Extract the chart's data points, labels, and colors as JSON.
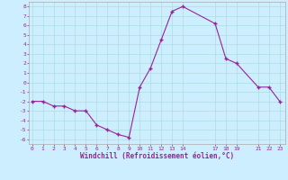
{
  "x": [
    0,
    1,
    2,
    3,
    4,
    5,
    6,
    7,
    8,
    9,
    10,
    11,
    12,
    13,
    14,
    17,
    18,
    19,
    21,
    22,
    23
  ],
  "y": [
    -2,
    -2,
    -2.5,
    -2.5,
    -3,
    -3,
    -4.5,
    -5,
    -5.5,
    -5.8,
    -0.5,
    1.5,
    4.5,
    7.5,
    8,
    6.2,
    2.5,
    2,
    -0.5,
    -0.5,
    -2
  ],
  "line_color": "#992299",
  "marker": "+",
  "bg_color": "#cceeff",
  "grid_color": "#aadddd",
  "xlabel": "Windchill (Refroidissement éolien,°C)",
  "xlabel_color": "#992299",
  "tick_color": "#992299",
  "spine_color": "#aaaaaa",
  "yticks": [
    -6,
    -5,
    -4,
    -3,
    -2,
    -1,
    0,
    1,
    2,
    3,
    4,
    5,
    6,
    7,
    8
  ],
  "xticks": [
    0,
    1,
    2,
    3,
    4,
    5,
    6,
    7,
    8,
    9,
    10,
    11,
    12,
    13,
    14,
    17,
    18,
    19,
    21,
    22,
    23
  ],
  "xlim": [
    -0.3,
    23.5
  ],
  "ylim": [
    -6.5,
    8.5
  ],
  "figsize": [
    3.2,
    2.0
  ],
  "dpi": 100
}
